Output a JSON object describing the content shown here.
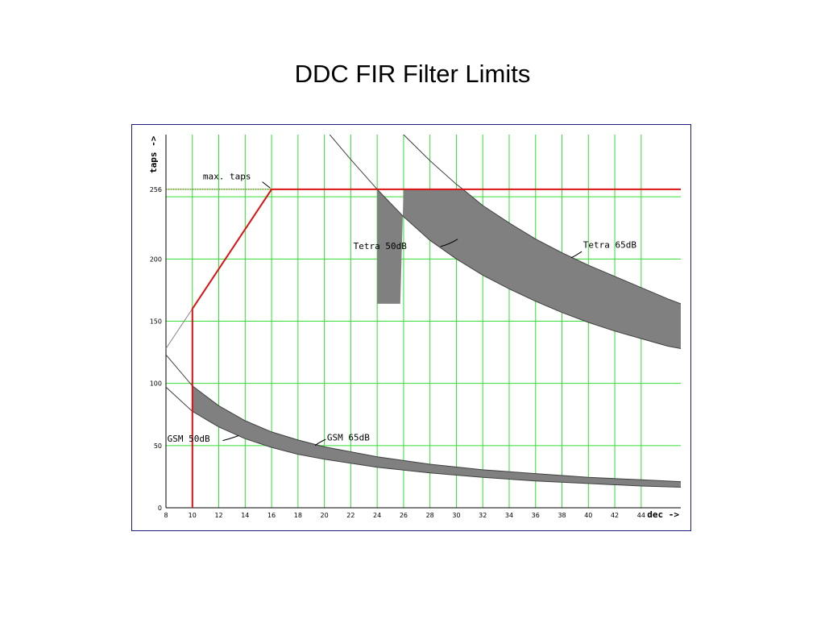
{
  "slide": {
    "title": "DDC FIR Filter Limits"
  },
  "colors": {
    "grid": "#33dd33",
    "limit": "#dd1111",
    "band": "#808080",
    "curve": "#404040",
    "frame": "#1a1a80"
  },
  "chart_data": {
    "type": "area",
    "xlabel": "dec ->",
    "ylabel": "taps ->",
    "xlim": [
      8,
      47
    ],
    "ylim": [
      0,
      300
    ],
    "xticks": [
      8,
      10,
      12,
      14,
      16,
      18,
      20,
      22,
      24,
      26,
      28,
      30,
      32,
      34,
      36,
      38,
      40,
      42,
      44
    ],
    "yticks": [
      0,
      50,
      100,
      150,
      200,
      256
    ],
    "grid": true,
    "max_taps": {
      "label": "max. taps",
      "value": 256
    },
    "limit_line": [
      [
        10,
        0
      ],
      [
        10,
        160
      ],
      [
        16,
        256
      ],
      [
        47,
        256
      ]
    ],
    "series": [
      {
        "name": "GSM 50dB",
        "x": [
          8,
          10,
          12,
          14,
          16,
          18,
          20,
          24,
          28,
          32,
          36,
          40,
          44,
          47
        ],
        "y": [
          97,
          77.5,
          65,
          55.5,
          48.5,
          43,
          39,
          32.5,
          28,
          24.5,
          21.5,
          19.5,
          17.5,
          16.5
        ]
      },
      {
        "name": "GSM 65dB",
        "x": [
          8,
          10,
          12,
          14,
          16,
          18,
          20,
          24,
          28,
          32,
          36,
          40,
          44,
          47
        ],
        "y": [
          123,
          98,
          82,
          70,
          61,
          54.5,
          49,
          41,
          35,
          30.5,
          27.5,
          24.5,
          22.5,
          21
        ]
      },
      {
        "name": "Tetra 50dB",
        "x": [
          20.4,
          22,
          24,
          26,
          28,
          30,
          32,
          34,
          36,
          38,
          40,
          42,
          44,
          46,
          47
        ],
        "y": [
          300,
          280,
          256,
          234,
          215,
          200,
          187,
          176,
          166,
          157,
          149,
          142,
          136,
          130,
          128
        ]
      },
      {
        "name": "Tetra 65dB",
        "x": [
          26,
          28,
          30,
          30.5,
          32,
          34,
          36,
          38,
          40,
          42,
          44,
          46,
          47
        ],
        "y": [
          300,
          279,
          260,
          256,
          243,
          229,
          216,
          205,
          195,
          186,
          177,
          168,
          164
        ]
      }
    ],
    "band_fill": true
  }
}
